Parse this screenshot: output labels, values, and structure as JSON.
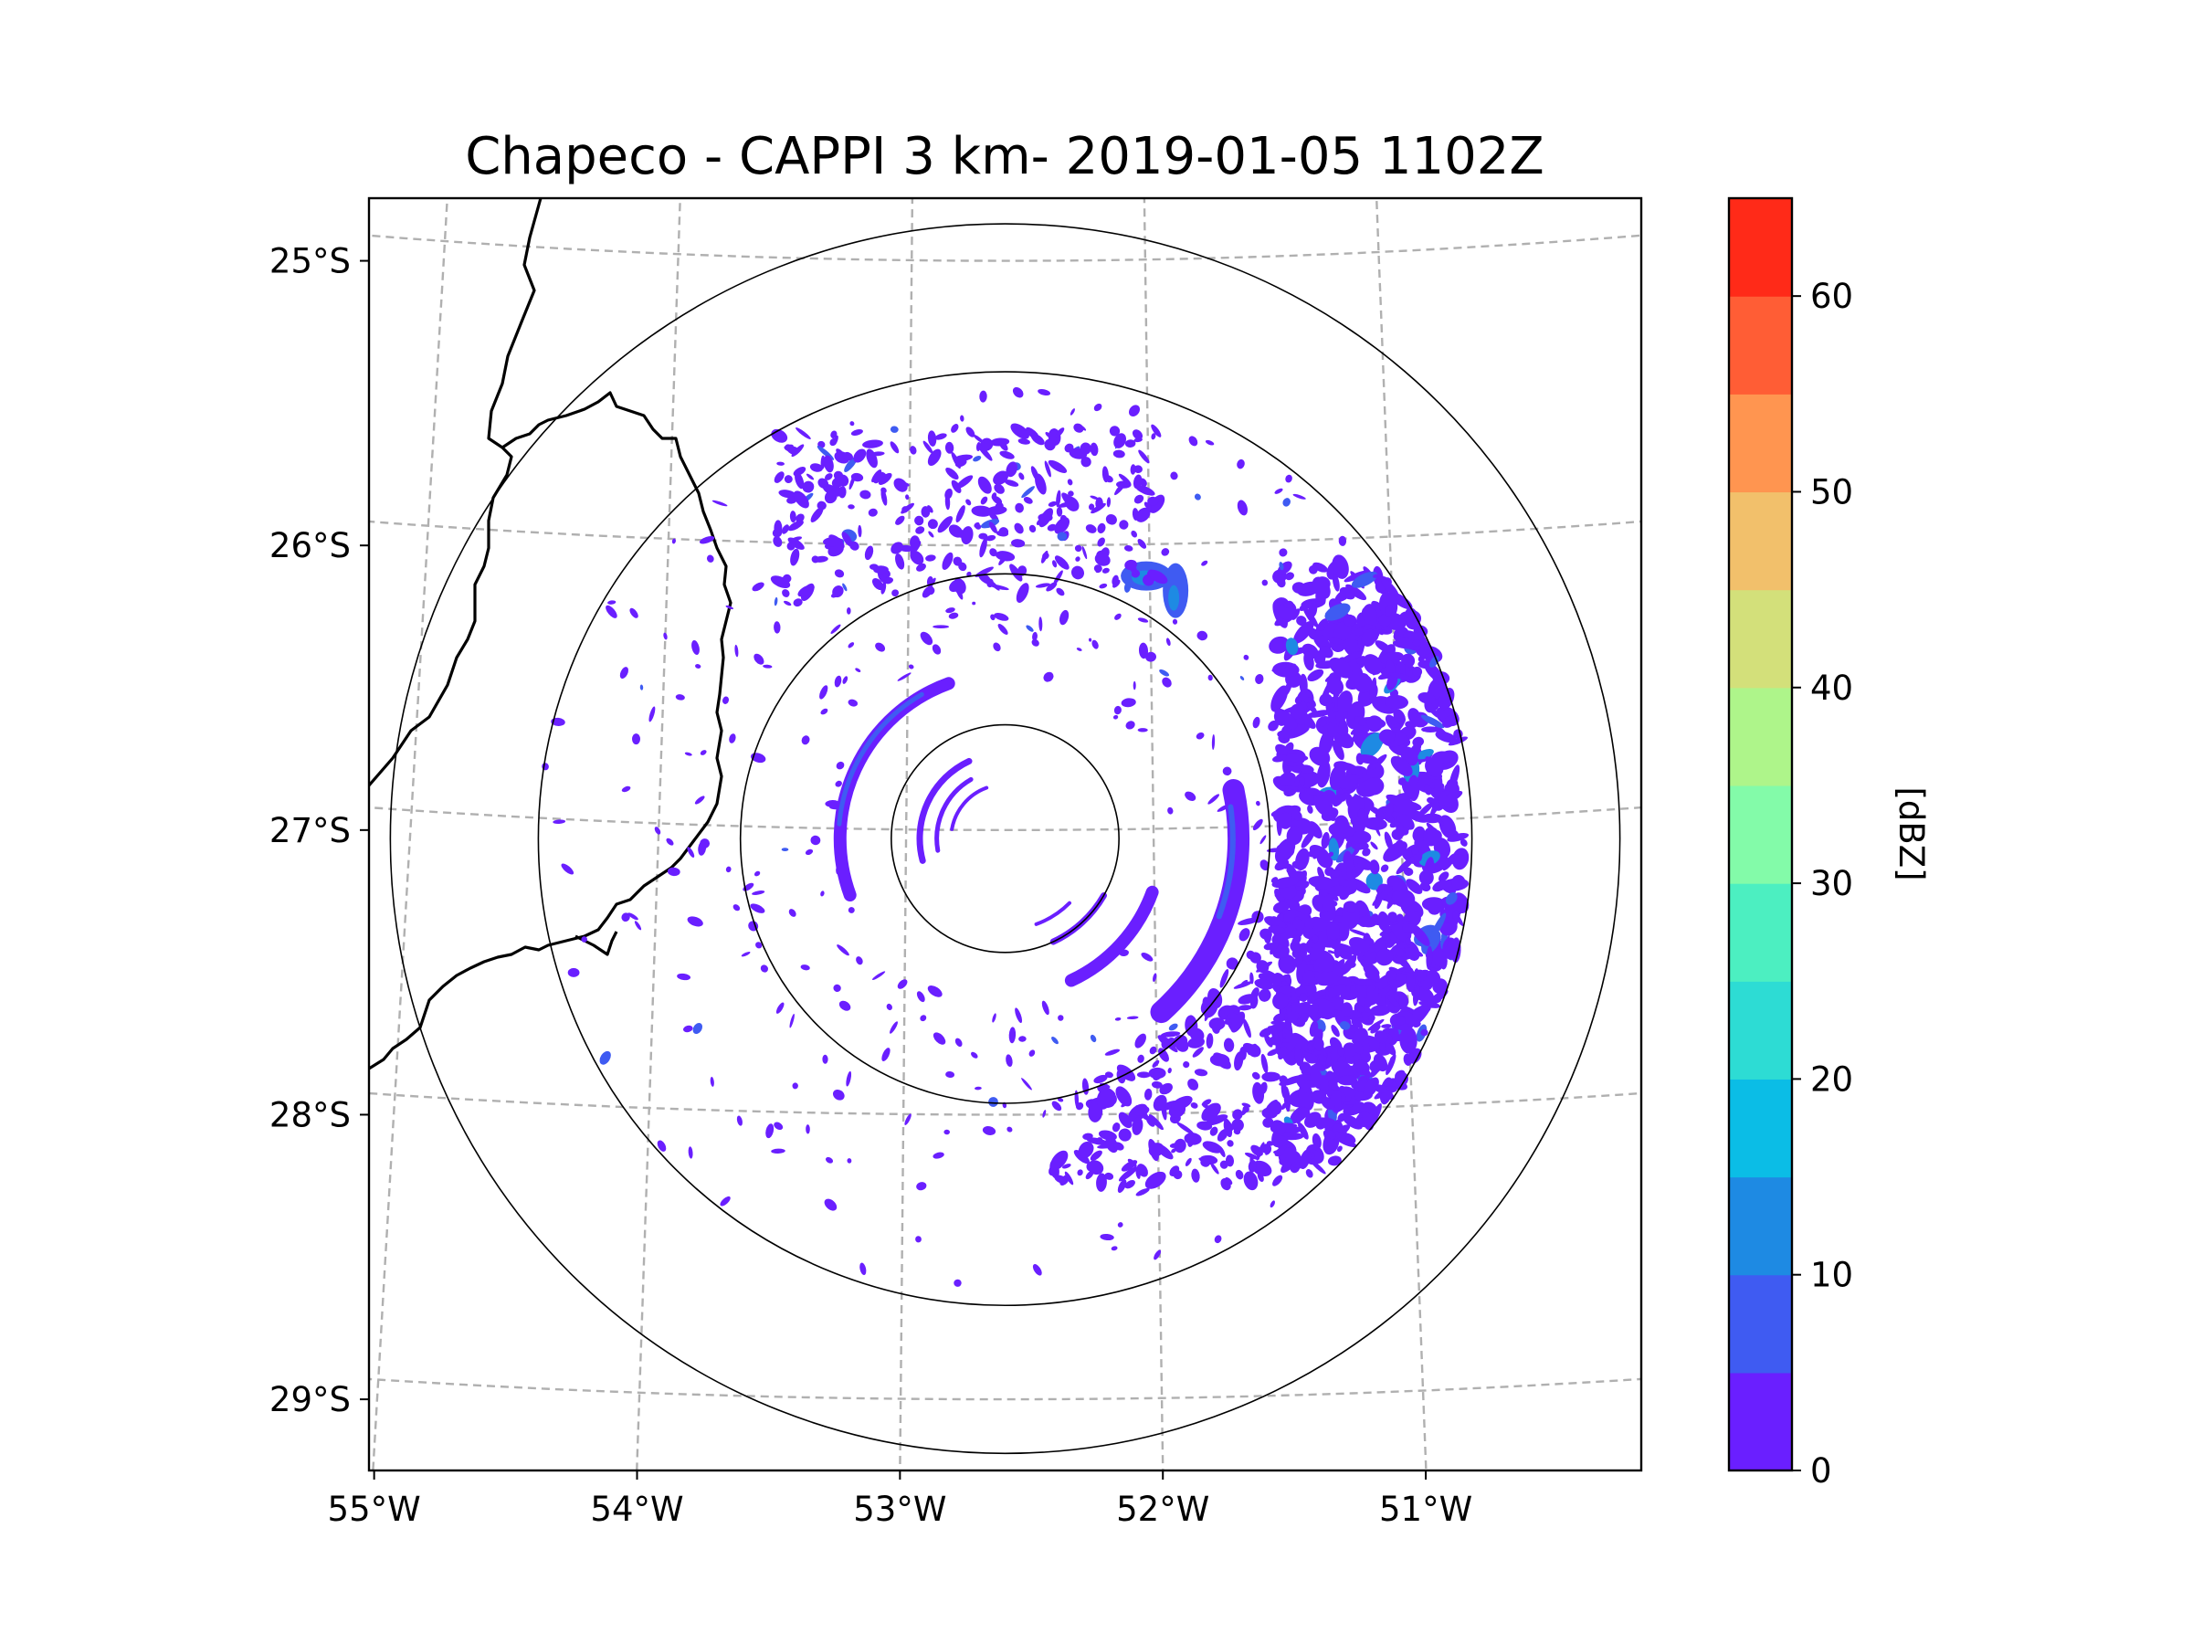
{
  "chart_data": {
    "type": "heatmap",
    "title": "Chapeco - CAPPI 3 km- 2019-01-05 1102Z",
    "xlabel": "",
    "ylabel": "",
    "x_ticks": [
      "55°W",
      "54°W",
      "53°W",
      "52°W",
      "51°W"
    ],
    "y_ticks": [
      "25°S",
      "26°S",
      "27°S",
      "28°S",
      "29°S"
    ],
    "x_tick_values": [
      -55,
      -54,
      -53,
      -52,
      -51
    ],
    "y_tick_values": [
      -25,
      -26,
      -27,
      -28,
      -29
    ],
    "xlim": [
      -55.17,
      -50.03
    ],
    "ylim": [
      -29.25,
      -24.78
    ],
    "radar_site": {
      "name": "Chapeco",
      "lon": -52.6,
      "lat": -27.03
    },
    "range_rings_deg_lat": [
      0.4,
      0.93,
      1.64,
      2.16
    ],
    "colorbar": {
      "label": "[dBZ]",
      "ticks": [
        "0",
        "10",
        "20",
        "30",
        "40",
        "50",
        "60"
      ],
      "tick_values": [
        0,
        10,
        20,
        30,
        40,
        50,
        60
      ],
      "range": [
        0,
        65
      ],
      "bin_width": 5,
      "colors": [
        "#6a1fff",
        "#3f5bf2",
        "#1e8ae3",
        "#0bbde6",
        "#2ddcd4",
        "#4cefc1",
        "#83fba9",
        "#aef58a",
        "#d3e07a",
        "#f2c06b",
        "#ff9550",
        "#ff5d35",
        "#ff2a18"
      ]
    },
    "echoes": [
      {
        "region": "east cluster (51.7W-50.8W, 26.4S-28.3S)",
        "dbz_range": [
          0,
          15
        ]
      },
      {
        "region": "southeast arc (52.4W-51.6W, 27.2S-27.8S)",
        "dbz_range": [
          0,
          10
        ]
      },
      {
        "region": "north scattered (53.5W-52.2W, 25.6S-26.2S)",
        "dbz_range": [
          0,
          5
        ]
      },
      {
        "region": "echo near 52.0W 26.2S",
        "dbz_range": [
          5,
          20
        ]
      },
      {
        "region": "inner arcs around radar",
        "dbz_range": [
          0,
          10
        ]
      }
    ]
  },
  "colors": {
    "weak_echo": "#6a1fff",
    "moderate_echo": "#3f5bf2",
    "strong_echo": "#1e8ae3",
    "grid": "#b0b0b0"
  }
}
